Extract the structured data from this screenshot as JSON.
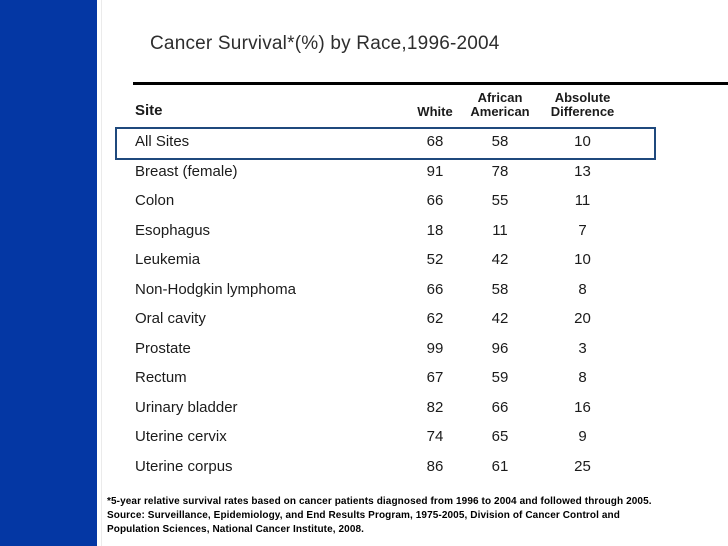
{
  "slide": {
    "title": "Cancer Survival*(%) by Race,1996-2004"
  },
  "colors": {
    "sidebar_blue": "#0437A4",
    "highlight_border": "#1F497D",
    "rule_black": "#000000"
  },
  "table": {
    "headers": {
      "site": "Site",
      "white": "White",
      "african_american": [
        "African",
        "American"
      ],
      "absolute_difference": [
        "Absolute",
        "Difference"
      ]
    },
    "rows": [
      {
        "site": "All Sites",
        "white": "68",
        "african_american": "58",
        "absolute_difference": "10",
        "highlight": true
      },
      {
        "site": "Breast (female)",
        "white": "91",
        "african_american": "78",
        "absolute_difference": "13"
      },
      {
        "site": "Colon",
        "white": "66",
        "african_american": "55",
        "absolute_difference": "11"
      },
      {
        "site": "Esophagus",
        "white": "18",
        "african_american": "11",
        "absolute_difference": "7"
      },
      {
        "site": "Leukemia",
        "white": "52",
        "african_american": "42",
        "absolute_difference": "10"
      },
      {
        "site": "Non-Hodgkin lymphoma",
        "white": "66",
        "african_american": "58",
        "absolute_difference": "8"
      },
      {
        "site": "Oral cavity",
        "white": "62",
        "african_american": "42",
        "absolute_difference": "20"
      },
      {
        "site": "Prostate",
        "white": "99",
        "african_american": "96",
        "absolute_difference": "3"
      },
      {
        "site": "Rectum",
        "white": "67",
        "african_american": "59",
        "absolute_difference": "8"
      },
      {
        "site": "Urinary bladder",
        "white": "82",
        "african_american": "66",
        "absolute_difference": "16"
      },
      {
        "site": "Uterine cervix",
        "white": "74",
        "african_american": "65",
        "absolute_difference": "9"
      },
      {
        "site": "Uterine corpus",
        "white": "86",
        "african_american": "61",
        "absolute_difference": "25"
      }
    ]
  },
  "footnote": {
    "lines": [
      "*5-year relative survival rates based on cancer patients diagnosed from 1996 to 2004 and followed through 2005.",
      "Source: Surveillance, Epidemiology, and End Results Program, 1975-2005, Division of Cancer Control and",
      "Population Sciences, National Cancer Institute, 2008."
    ]
  }
}
